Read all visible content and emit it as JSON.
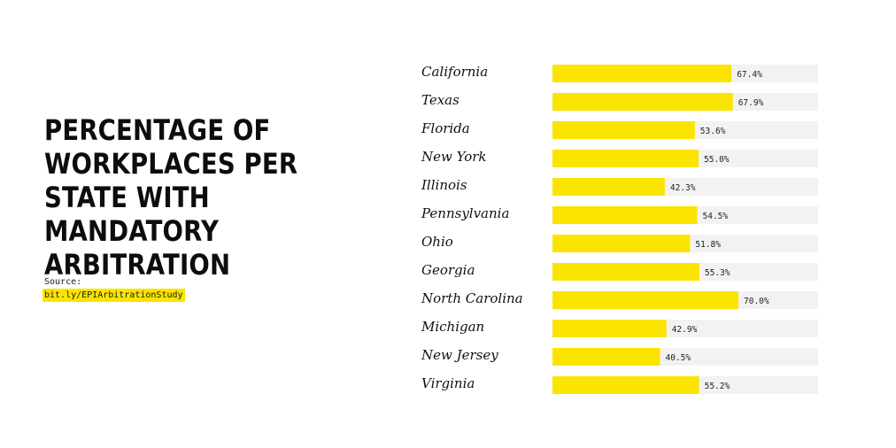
{
  "title": "PERCENTAGE OF WORKPLACES PER STATE WITH MANDATORY ARBITRATION",
  "source": {
    "label": "Source:",
    "link": "bit.ly/EPIArbitrationStudy"
  },
  "colors": {
    "bar": "#fbe400",
    "track": "#f2f2f2",
    "highlight": "#fbe400"
  },
  "chart_data": {
    "type": "bar",
    "orientation": "horizontal",
    "title": "PERCENTAGE OF WORKPLACES PER STATE WITH MANDATORY ARBITRATION",
    "xlabel": "",
    "ylabel": "",
    "xlim": [
      0,
      100
    ],
    "grid": false,
    "legend": "none",
    "categories": [
      "California",
      "Texas",
      "Florida",
      "New York",
      "Illinois",
      "Pennsylvania",
      "Ohio",
      "Georgia",
      "North Carolina",
      "Michigan",
      "New Jersey",
      "Virginia"
    ],
    "values": [
      67.4,
      67.9,
      53.6,
      55.0,
      42.3,
      54.5,
      51.8,
      55.3,
      70.0,
      42.9,
      40.5,
      55.2
    ],
    "value_labels": [
      "67.4%",
      "67.9%",
      "53.6%",
      "55.0%",
      "42.3%",
      "54.5%",
      "51.8%",
      "55.3%",
      "70.0%",
      "42.9%",
      "40.5%",
      "55.2%"
    ]
  }
}
